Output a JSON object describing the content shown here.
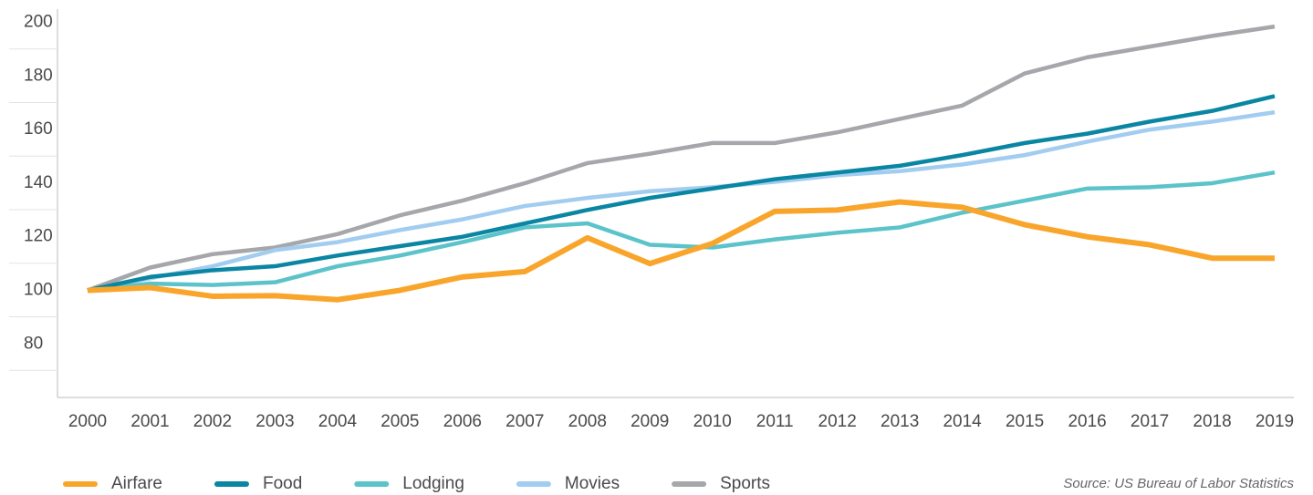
{
  "chart_data": {
    "type": "line",
    "categories": [
      "2000",
      "2001",
      "2002",
      "2003",
      "2004",
      "2005",
      "2006",
      "2007",
      "2008",
      "2009",
      "2010",
      "2011",
      "2012",
      "2013",
      "2014",
      "2015",
      "2016",
      "2017",
      "2018",
      "2019"
    ],
    "series": [
      {
        "name": "Airfare",
        "color": "#f9a52b",
        "values": [
          100,
          101,
          97.8,
          98,
          96.5,
          100,
          105,
          107,
          119.6,
          110,
          117.5,
          129.5,
          130,
          133,
          131,
          124.5,
          120,
          117,
          112,
          112
        ]
      },
      {
        "name": "Food",
        "color": "#0a86a3",
        "values": [
          100,
          105,
          107.5,
          109,
          113,
          116.5,
          120,
          125,
          130,
          134.5,
          138,
          141.5,
          144,
          146.5,
          150.5,
          155,
          158.5,
          163,
          167,
          172.5
        ]
      },
      {
        "name": "Lodging",
        "color": "#5bc3c9",
        "values": [
          100,
          102.5,
          102,
          103,
          109,
          113,
          118,
          123.5,
          125,
          117,
          116,
          119,
          121.5,
          123.5,
          129,
          133.5,
          138,
          138.5,
          140,
          144
        ]
      },
      {
        "name": "Movies",
        "color": "#a2cdf0",
        "values": [
          100,
          104.5,
          109,
          115,
          118,
          122.5,
          126.5,
          131.5,
          134.5,
          137,
          138.5,
          140.5,
          143,
          144.5,
          147,
          150.5,
          155.5,
          160,
          163,
          166.5
        ]
      },
      {
        "name": "Sports",
        "color": "#a5a7aa",
        "values": [
          100,
          108.5,
          113.5,
          116,
          121,
          128,
          133.5,
          140,
          147.5,
          151,
          155,
          155,
          159,
          164,
          169,
          181,
          187,
          191,
          195,
          198.5
        ]
      }
    ],
    "ylim": [
      60,
      205
    ],
    "yticks": [
      80,
      100,
      120,
      140,
      160,
      180,
      200
    ],
    "source": "Source: US Bureau of Labor Statistics"
  }
}
